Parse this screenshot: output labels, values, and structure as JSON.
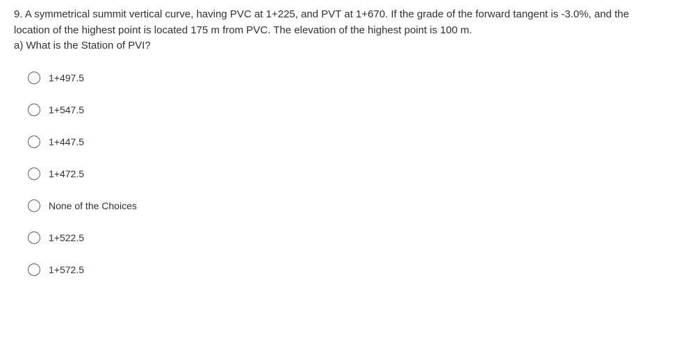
{
  "question": {
    "number": "9.",
    "text": "A symmetrical summit vertical curve, having PVC at 1+225, and PVT at 1+670. If the grade of the forward tangent is -3.0%, and the location of the highest point is located 175 m from PVC. The elevation of the highest point is 100 m.",
    "subpart": "a) What is the Station of PVI?"
  },
  "options": [
    {
      "label": "1+497.5"
    },
    {
      "label": "1+547.5"
    },
    {
      "label": "1+447.5"
    },
    {
      "label": "1+472.5"
    },
    {
      "label": "None of the Choices"
    },
    {
      "label": "1+522.5"
    },
    {
      "label": "1+572.5"
    }
  ],
  "styling": {
    "background_color": "#ffffff",
    "text_color": "#323130",
    "radio_border_color": "#605e5c",
    "question_fontsize": 15,
    "option_fontsize": 14,
    "font_family": "Segoe UI"
  }
}
